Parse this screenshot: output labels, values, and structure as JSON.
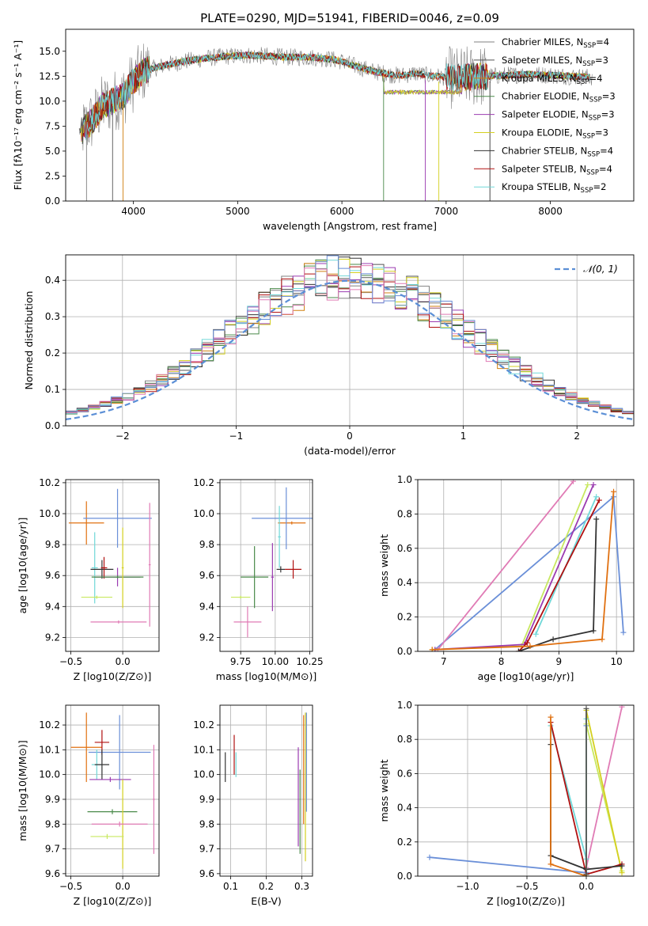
{
  "figure": {
    "title": "PLATE=0290, MJD=51941, FIBERID=0046, z=0.09"
  },
  "chart_data": [
    {
      "id": "spectrum",
      "type": "line",
      "xlabel": "wavelength [Angstrom, rest frame]",
      "ylabel": "Flux [fλ10⁻¹⁷ erg cm⁻² s⁻¹ A⁻¹]",
      "xlim": [
        3350,
        8800
      ],
      "ylim": [
        0,
        17.2
      ],
      "xticks": [
        4000,
        5000,
        6000,
        7000,
        8000
      ],
      "yticks": [
        0.0,
        2.5,
        5.0,
        7.5,
        10.0,
        12.5,
        15.0
      ],
      "legend_position": "right",
      "grid": false,
      "series": [
        {
          "name": "Chabrier MILES, N_SSP=4",
          "label_base": "Chabrier MILES, N",
          "label_sub": "SSP",
          "label_tail": "=4",
          "color": "#808080"
        },
        {
          "name": "Salpeter MILES, N_SSP=3",
          "label_base": "Salpeter MILES, N",
          "label_sub": "SSP",
          "label_tail": "=3",
          "color": "#555555"
        },
        {
          "name": "Kroupa MILES, N_SSP=4",
          "label_base": "Kroupa MILES, N",
          "label_sub": "SSP",
          "label_tail": "=4",
          "color": "#d08010"
        },
        {
          "name": "Chabrier ELODIE, N_SSP=3",
          "label_base": "Chabrier ELODIE, N",
          "label_sub": "SSP",
          "label_tail": "=3",
          "color": "#4a8a4a"
        },
        {
          "name": "Salpeter ELODIE, N_SSP=3",
          "label_base": "Salpeter ELODIE, N",
          "label_sub": "SSP",
          "label_tail": "=3",
          "color": "#9b3bb0"
        },
        {
          "name": "Kroupa ELODIE, N_SSP=3",
          "label_base": "Kroupa ELODIE, N",
          "label_sub": "SSP",
          "label_tail": "=3",
          "color": "#d4d020"
        },
        {
          "name": "Chabrier STELIB, N_SSP=4",
          "label_base": "Chabrier STELIB, N",
          "label_sub": "SSP",
          "label_tail": "=4",
          "color": "#333333"
        },
        {
          "name": "Salpeter STELIB, N_SSP=4",
          "label_base": "Salpeter STELIB, N",
          "label_sub": "SSP",
          "label_tail": "=4",
          "color": "#b01010"
        },
        {
          "name": "Kroupa STELIB, N_SSP=2",
          "label_base": "Kroupa STELIB, N",
          "label_sub": "SSP",
          "label_tail": "=2",
          "color": "#70d8d8"
        }
      ],
      "continuum_points": {
        "x": [
          3500,
          3600,
          3700,
          3800,
          3900,
          4000,
          4100,
          4200,
          4300,
          4400,
          4500,
          4700,
          4900,
          5100,
          5300,
          5500,
          5700,
          5900,
          6000,
          6100,
          6200,
          6300,
          6400,
          6500,
          6600,
          6700,
          6800,
          6900,
          7000,
          7100,
          7200,
          7300,
          7400,
          7600,
          7800,
          8000,
          8200,
          8400
        ],
        "y": [
          7.0,
          8.0,
          9.5,
          10.0,
          10.5,
          12.0,
          13.0,
          13.3,
          13.6,
          13.8,
          14.0,
          14.3,
          14.5,
          14.6,
          14.5,
          14.4,
          14.4,
          14.2,
          14.0,
          13.6,
          13.3,
          13.0,
          12.8,
          12.6,
          12.6,
          12.8,
          12.6,
          12.5,
          12.4,
          12.3,
          12.4,
          12.5,
          12.5,
          12.6,
          12.7,
          12.6,
          12.5,
          12.4
        ]
      },
      "elodie_dip": {
        "x_range": [
          6400,
          7150
        ],
        "y": 10.9
      },
      "noisy_segments": [
        [
          3500,
          4150
        ],
        [
          7000,
          7400
        ]
      ]
    },
    {
      "id": "residuals",
      "type": "histogram",
      "xlabel": "(data-model)/error",
      "ylabel": "Normed distribution",
      "xlim": [
        -2.5,
        2.5
      ],
      "ylim": [
        0,
        0.47
      ],
      "xticks": [
        -2,
        -1,
        0,
        1,
        2
      ],
      "yticks": [
        0.0,
        0.1,
        0.2,
        0.3,
        0.4
      ],
      "grid": true,
      "bin_width": 0.1,
      "legend_position": "upper right",
      "legend": [
        {
          "label": "𝒩(0, 1)",
          "style": "dashed",
          "color": "#5b8fd6"
        }
      ],
      "gaussian": {
        "mean": 0,
        "sigma": 1,
        "color": "#5b8fd6"
      },
      "hist_colors": [
        "#808080",
        "#555555",
        "#d08010",
        "#4a8a4a",
        "#9b3bb0",
        "#d4d020",
        "#333333",
        "#b01010",
        "#70d8d8",
        "#e07bb5",
        "#6a8fd8"
      ]
    },
    {
      "id": "age_vs_Z",
      "type": "errorbar",
      "xlabel": "Z [log10(Z/Z⊙)]",
      "ylabel": "age  [log10(age/yr)]",
      "xlim": [
        -0.55,
        0.35
      ],
      "ylim": [
        9.11,
        10.22
      ],
      "xticks": [
        -0.5,
        0.0
      ],
      "yticks": [
        9.2,
        9.4,
        9.6,
        9.8,
        10.0,
        10.2
      ],
      "grid": true,
      "points": [
        {
          "x": -0.35,
          "y": 9.94,
          "xerr": 0.17,
          "yerr": 0.14,
          "color": "#e07010"
        },
        {
          "x": -0.05,
          "y": 9.97,
          "xerr": 0.33,
          "yerr": 0.19,
          "color": "#6a8fd8"
        },
        {
          "x": -0.27,
          "y": 9.65,
          "xerr": 0.03,
          "yerr": 0.23,
          "color": "#70d8d8"
        },
        {
          "x": -0.2,
          "y": 9.64,
          "xerr": 0.11,
          "yerr": 0.06,
          "color": "#333333"
        },
        {
          "x": -0.18,
          "y": 9.65,
          "xerr": 0.03,
          "yerr": 0.07,
          "color": "#b01010"
        },
        {
          "x": -0.05,
          "y": 9.59,
          "xerr": 0.22,
          "yerr": 0.06,
          "color": "#9b3bb0"
        },
        {
          "x": -0.05,
          "y": 9.59,
          "xerr": 0.25,
          "yerr": 0.01,
          "color": "#4a8a4a"
        },
        {
          "x": 0.0,
          "y": 9.65,
          "xerr": 0.01,
          "yerr": 0.26,
          "color": "#d4d020"
        },
        {
          "x": -0.25,
          "y": 9.46,
          "xerr": 0.15,
          "yerr": 0.01,
          "color": "#c8e860"
        },
        {
          "x": -0.04,
          "y": 9.3,
          "xerr": 0.27,
          "yerr": 0.01,
          "color": "#e07bb5"
        },
        {
          "x": 0.26,
          "y": 9.67,
          "xerr": 0.01,
          "yerr": 0.4,
          "color": "#e07bb5"
        }
      ]
    },
    {
      "id": "age_vs_mass",
      "type": "errorbar",
      "xlabel": "mass [log10(M/M⊙)]",
      "ylabel": "",
      "xlim": [
        9.6,
        10.27
      ],
      "ylim": [
        9.11,
        10.22
      ],
      "xticks": [
        9.75,
        10.0,
        10.25
      ],
      "yticks": [
        9.2,
        9.4,
        9.6,
        9.8,
        10.0,
        10.2
      ],
      "grid": true,
      "points": [
        {
          "x": 10.12,
          "y": 9.94,
          "xerr": 0.1,
          "yerr": 0.01,
          "color": "#e07010"
        },
        {
          "x": 10.08,
          "y": 9.97,
          "xerr": 0.25,
          "yerr": 0.2,
          "color": "#6a8fd8"
        },
        {
          "x": 10.03,
          "y": 9.85,
          "xerr": 0.01,
          "yerr": 0.2,
          "color": "#70d8d8"
        },
        {
          "x": 10.04,
          "y": 9.64,
          "xerr": 0.03,
          "yerr": 0.02,
          "color": "#333333"
        },
        {
          "x": 10.13,
          "y": 9.64,
          "xerr": 0.06,
          "yerr": 0.06,
          "color": "#b01010"
        },
        {
          "x": 9.98,
          "y": 9.59,
          "xerr": 0.01,
          "yerr": 0.22,
          "color": "#9b3bb0"
        },
        {
          "x": 9.85,
          "y": 9.59,
          "xerr": 0.1,
          "yerr": 0.2,
          "color": "#4a8a4a"
        },
        {
          "x": 9.75,
          "y": 9.46,
          "xerr": 0.07,
          "yerr": 0.01,
          "color": "#c8e860"
        },
        {
          "x": 9.8,
          "y": 9.3,
          "xerr": 0.1,
          "yerr": 0.1,
          "color": "#e07bb5"
        }
      ]
    },
    {
      "id": "mass_weight_vs_age",
      "type": "line",
      "xlabel": "age  [log10(age/yr)]",
      "ylabel": "mass weight",
      "xlim": [
        6.55,
        10.3
      ],
      "ylim": [
        0,
        1.0
      ],
      "xticks": [
        7,
        8,
        9,
        10
      ],
      "yticks": [
        0.0,
        0.2,
        0.4,
        0.6,
        0.8,
        1.0
      ],
      "grid": true,
      "series": [
        {
          "color": "#6a8fd8",
          "x": [
            6.85,
            9.95,
            10.12
          ],
          "y": [
            0.01,
            0.9,
            0.11
          ]
        },
        {
          "color": "#e07bb5",
          "x": [
            6.9,
            9.25
          ],
          "y": [
            0.01,
            0.99
          ]
        },
        {
          "color": "#c8e860",
          "x": [
            6.8,
            8.35,
            9.5
          ],
          "y": [
            0.01,
            0.03,
            0.97
          ]
        },
        {
          "color": "#9b3bb0",
          "x": [
            6.85,
            8.4,
            9.6
          ],
          "y": [
            0.01,
            0.04,
            0.97
          ]
        },
        {
          "color": "#70d8d8",
          "x": [
            8.6,
            9.65
          ],
          "y": [
            0.1,
            0.9
          ]
        },
        {
          "color": "#b01010",
          "x": [
            8.3,
            8.45,
            9.7
          ],
          "y": [
            0.0,
            0.05,
            0.88
          ]
        },
        {
          "color": "#333333",
          "x": [
            8.3,
            8.9,
            9.6,
            9.65
          ],
          "y": [
            0.0,
            0.07,
            0.12,
            0.77
          ]
        },
        {
          "color": "#e07010",
          "x": [
            6.8,
            8.5,
            9.75,
            9.95
          ],
          "y": [
            0.01,
            0.03,
            0.07,
            0.93
          ]
        }
      ]
    },
    {
      "id": "mass_vs_Z",
      "type": "errorbar",
      "xlabel": "Z [log10(Z/Z⊙)]",
      "ylabel": "mass [log10(M/M⊙)]",
      "xlim": [
        -0.55,
        0.35
      ],
      "ylim": [
        9.59,
        10.28
      ],
      "xticks": [
        -0.5,
        0.0
      ],
      "yticks": [
        9.6,
        9.7,
        9.8,
        9.9,
        10.0,
        10.1,
        10.2
      ],
      "grid": true,
      "points": [
        {
          "x": -0.35,
          "y": 10.11,
          "xerr": 0.15,
          "yerr": 0.14,
          "color": "#e07010"
        },
        {
          "x": -0.03,
          "y": 10.09,
          "xerr": 0.3,
          "yerr": 0.15,
          "color": "#6a8fd8"
        },
        {
          "x": -0.2,
          "y": 10.13,
          "xerr": 0.07,
          "yerr": 0.05,
          "color": "#b01010"
        },
        {
          "x": -0.25,
          "y": 10.04,
          "xerr": 0.05,
          "yerr": 0.06,
          "color": "#70d8d8"
        },
        {
          "x": -0.2,
          "y": 10.04,
          "xerr": 0.07,
          "yerr": 0.06,
          "color": "#333333"
        },
        {
          "x": -0.12,
          "y": 9.98,
          "xerr": 0.2,
          "yerr": 0.01,
          "color": "#9b3bb0"
        },
        {
          "x": -0.1,
          "y": 9.85,
          "xerr": 0.24,
          "yerr": 0.01,
          "color": "#4a8a4a"
        },
        {
          "x": 0.0,
          "y": 9.8,
          "xerr": 0.01,
          "yerr": 0.18,
          "color": "#d4d020"
        },
        {
          "x": -0.15,
          "y": 9.75,
          "xerr": 0.16,
          "yerr": 0.01,
          "color": "#c8e860"
        },
        {
          "x": -0.03,
          "y": 9.8,
          "xerr": 0.27,
          "yerr": 0.01,
          "color": "#e07bb5"
        },
        {
          "x": 0.3,
          "y": 9.9,
          "xerr": 0.01,
          "yerr": 0.22,
          "color": "#e07bb5"
        }
      ]
    },
    {
      "id": "mass_vs_EBV",
      "type": "errorbar",
      "xlabel": "E(B-V)",
      "ylabel": "",
      "xlim": [
        0.07,
        0.33
      ],
      "ylim": [
        9.59,
        10.28
      ],
      "xticks": [
        0.1,
        0.2,
        0.3
      ],
      "yticks": [
        9.6,
        9.7,
        9.8,
        9.9,
        10.0,
        10.1,
        10.2
      ],
      "grid": true,
      "points": [
        {
          "x": 0.085,
          "y": 10.03,
          "xerr": 0.0,
          "yerr": 0.06,
          "color": "#333333"
        },
        {
          "x": 0.11,
          "y": 10.08,
          "xerr": 0.0,
          "yerr": 0.08,
          "color": "#b01010"
        },
        {
          "x": 0.115,
          "y": 10.04,
          "xerr": 0.0,
          "yerr": 0.05,
          "color": "#70d8d8"
        },
        {
          "x": 0.29,
          "y": 9.91,
          "xerr": 0.0,
          "yerr": 0.2,
          "color": "#9b3bb0"
        },
        {
          "x": 0.295,
          "y": 9.85,
          "xerr": 0.0,
          "yerr": 0.17,
          "color": "#4a8a4a"
        },
        {
          "x": 0.305,
          "y": 10.02,
          "xerr": 0.0,
          "yerr": 0.22,
          "color": "#e07010"
        },
        {
          "x": 0.31,
          "y": 9.95,
          "xerr": 0.0,
          "yerr": 0.3,
          "color": "#d4d020"
        },
        {
          "x": 0.313,
          "y": 10.05,
          "xerr": 0.0,
          "yerr": 0.2,
          "color": "#6a8fd8"
        }
      ]
    },
    {
      "id": "mass_weight_vs_Z",
      "type": "line",
      "xlabel": "Z [log10(Z/Z⊙)]",
      "ylabel": "mass weight",
      "xlim": [
        -1.42,
        0.4
      ],
      "ylim": [
        0,
        1.0
      ],
      "xticks": [
        -1.0,
        -0.5,
        0.0
      ],
      "yticks": [
        0.0,
        0.2,
        0.4,
        0.6,
        0.8,
        1.0
      ],
      "grid": true,
      "series": [
        {
          "color": "#6a8fd8",
          "x": [
            -1.32,
            0.0,
            0.0
          ],
          "y": [
            0.11,
            0.02,
            0.88
          ]
        },
        {
          "color": "#e07bb5",
          "x": [
            0.0,
            0.3
          ],
          "y": [
            0.05,
            0.99
          ]
        },
        {
          "color": "#c8e860",
          "x": [
            0.0,
            0.0,
            0.3
          ],
          "y": [
            0.01,
            0.89,
            0.03
          ]
        },
        {
          "color": "#d4d020",
          "x": [
            0.0,
            0.0,
            0.3
          ],
          "y": [
            0.0,
            0.97,
            0.02
          ]
        },
        {
          "color": "#70d8d8",
          "x": [
            -0.3,
            0.0,
            0.0
          ],
          "y": [
            0.88,
            0.1,
            0.92
          ]
        },
        {
          "color": "#b01010",
          "x": [
            -0.3,
            0.0,
            0.3
          ],
          "y": [
            0.9,
            0.01,
            0.07
          ]
        },
        {
          "color": "#333333",
          "x": [
            -0.3,
            -0.3,
            0.0,
            0.3
          ],
          "y": [
            0.77,
            0.12,
            0.04,
            0.06
          ]
        },
        {
          "color": "#e07010",
          "x": [
            -0.3,
            -0.3,
            0.0
          ],
          "y": [
            0.93,
            0.07,
            0.0
          ]
        },
        {
          "color": "#555555",
          "x": [
            0.0,
            0.0
          ],
          "y": [
            0.01,
            0.98
          ]
        }
      ]
    }
  ]
}
